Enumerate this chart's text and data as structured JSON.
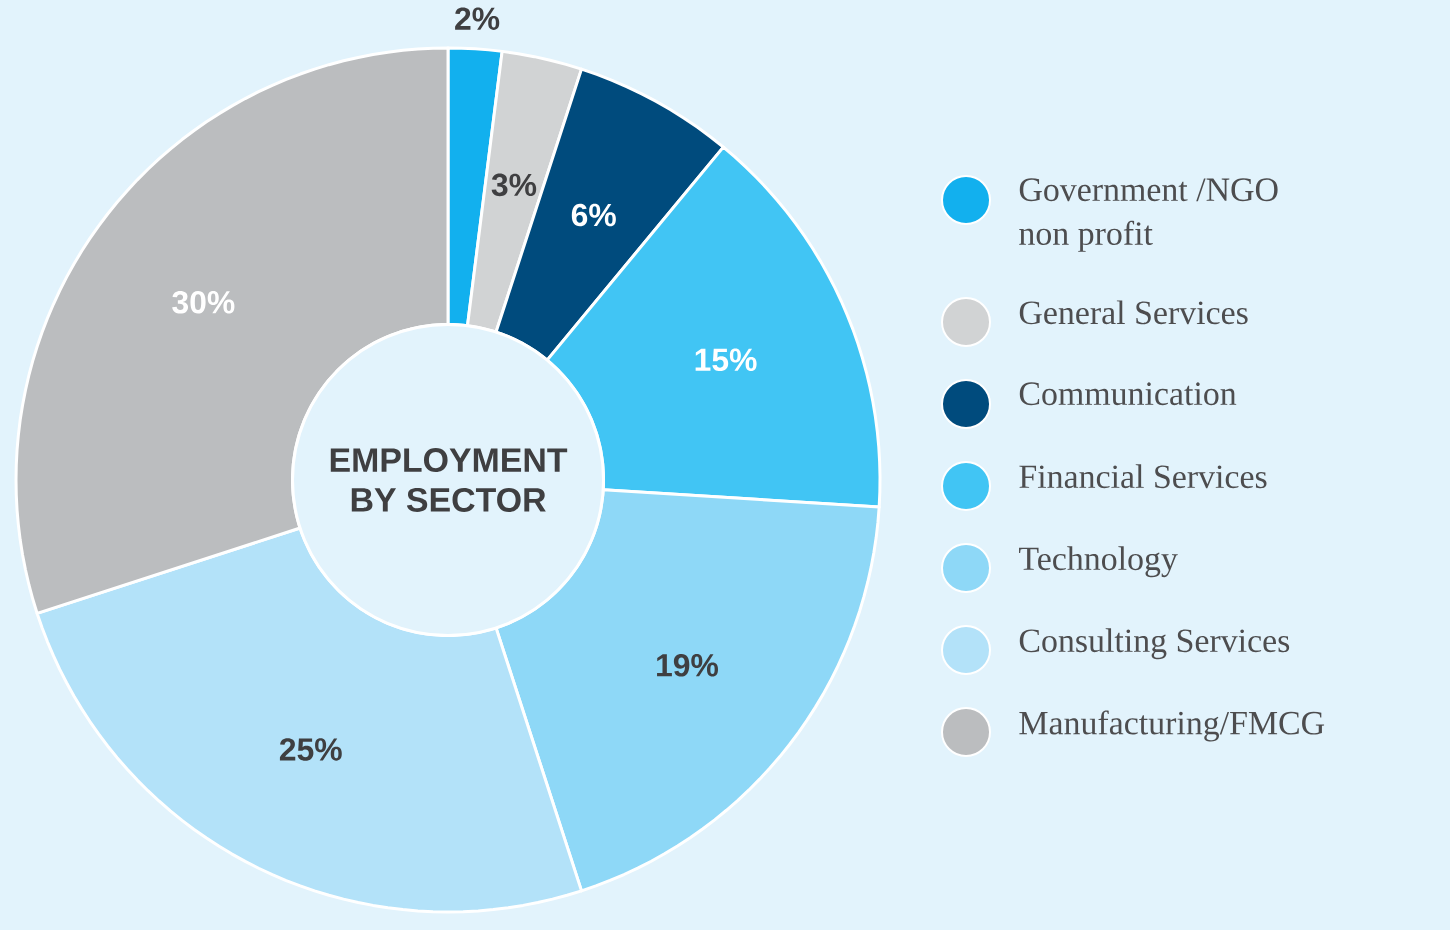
{
  "chart_data": {
    "type": "donut",
    "title": "EMPLOYMENT BY SECTOR",
    "categories": [
      "Government /NGO non profit",
      "General Services",
      "Communication",
      "Financial Services",
      "Technology",
      "Consulting Services",
      "Manufacturing/FMCG"
    ],
    "values": [
      2,
      3,
      6,
      15,
      19,
      25,
      30
    ],
    "value_labels": [
      "2%",
      "3%",
      "6%",
      "15%",
      "19%",
      "25%",
      "30%"
    ],
    "colors": [
      "#12b0ee",
      "#d1d3d4",
      "#004b7d",
      "#41c5f4",
      "#8ed8f7",
      "#b3e2f9",
      "#bbbdbf"
    ],
    "legend": "right"
  }
}
